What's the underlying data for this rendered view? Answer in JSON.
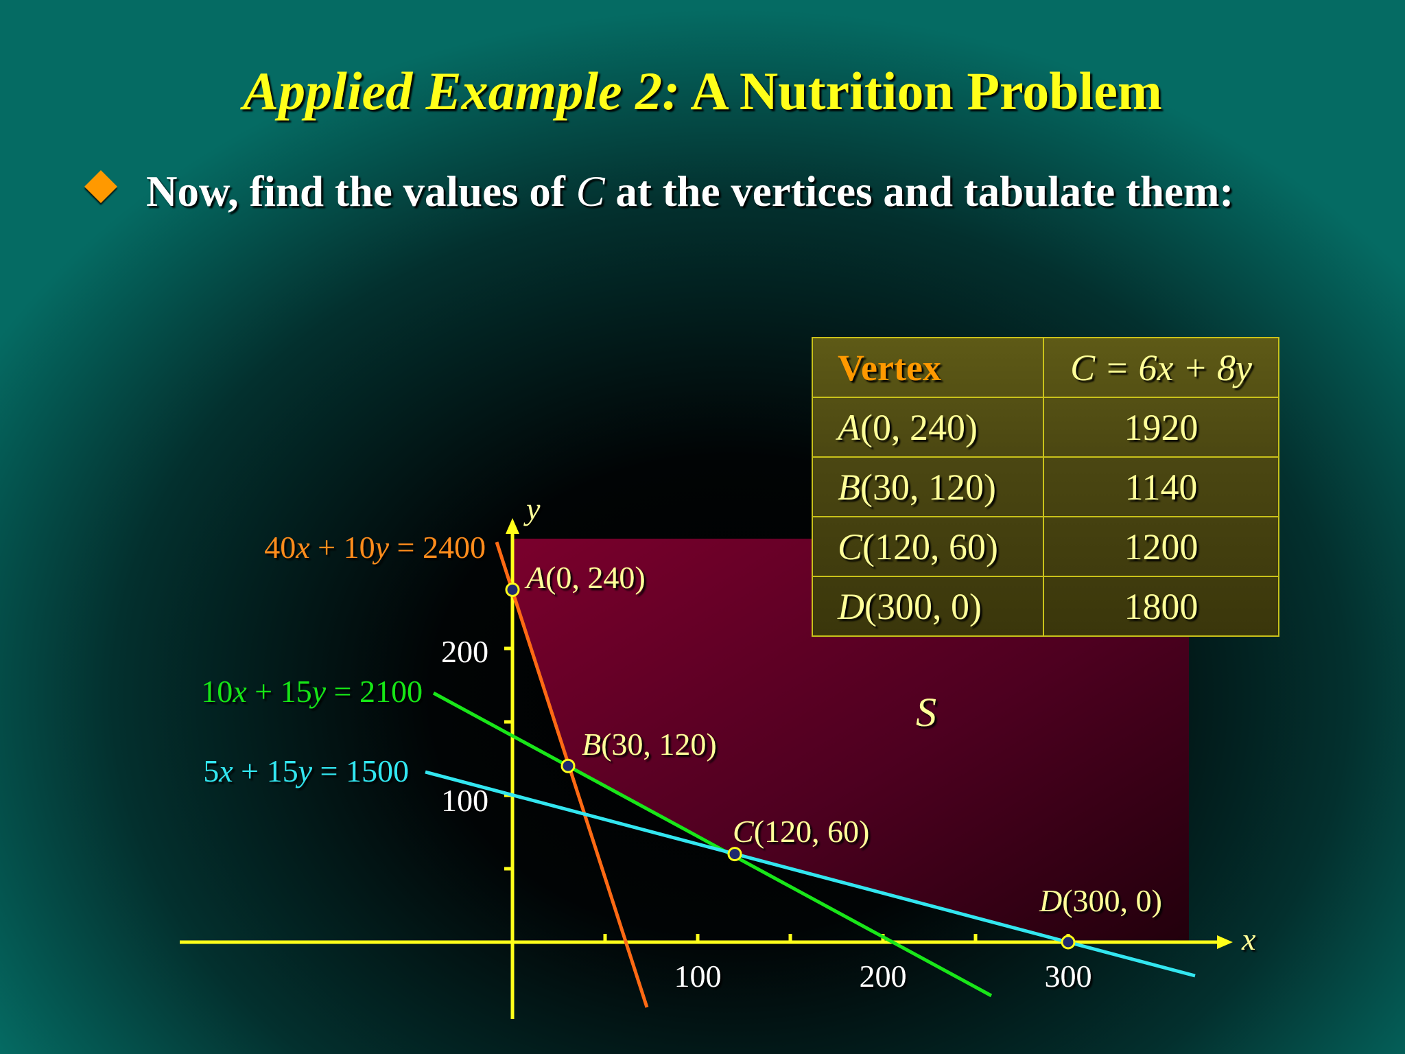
{
  "title": {
    "italic_part": "Applied Example 2:",
    "rest": "A Nutrition Problem"
  },
  "bullet": {
    "before": "Now, find the values of ",
    "variable": "C",
    "after": " at the vertices and tabulate them:"
  },
  "table": {
    "headers": [
      "Vertex",
      "C = 6x + 8y"
    ],
    "rows": [
      {
        "letter": "A",
        "coords": "(0, 240)",
        "value": "1920"
      },
      {
        "letter": "B",
        "coords": "(30, 120)",
        "value": "1140"
      },
      {
        "letter": "C",
        "coords": "(120, 60)",
        "value": "1200"
      },
      {
        "letter": "D",
        "coords": "(300, 0)",
        "value": "1800"
      }
    ]
  },
  "graph": {
    "x_axis_label": "x",
    "y_axis_label": "y",
    "x_ticks": [
      "100",
      "200",
      "300"
    ],
    "y_ticks": [
      "100",
      "200"
    ],
    "region_label": "S",
    "lines": [
      {
        "id": "orange",
        "color": "#ff6a14",
        "label_color": "#ff8c1a",
        "parts": [
          "40",
          "x",
          " + 10",
          "y",
          " = 2400"
        ]
      },
      {
        "id": "green",
        "color": "#19e619",
        "label_color": "#19e619",
        "parts": [
          "10",
          "x",
          " + 15",
          "y",
          " = 2100"
        ]
      },
      {
        "id": "cyan",
        "color": "#33e6f0",
        "label_color": "#33e6f0",
        "parts": [
          "5",
          "x",
          " + 15",
          "y",
          " = 1500"
        ]
      }
    ],
    "vertices": [
      {
        "letter": "A",
        "coords": "(0, 240)"
      },
      {
        "letter": "B",
        "coords": "(30, 120)"
      },
      {
        "letter": "C",
        "coords": "(120, 60)"
      },
      {
        "letter": "D",
        "coords": "(300, 0)"
      }
    ],
    "colors": {
      "axis": "#ffff1a",
      "region": "#6b0027",
      "vertex_fill": "#1f2a6e",
      "vertex_stroke": "#ffff1a",
      "label_text": "#ffff99"
    }
  }
}
